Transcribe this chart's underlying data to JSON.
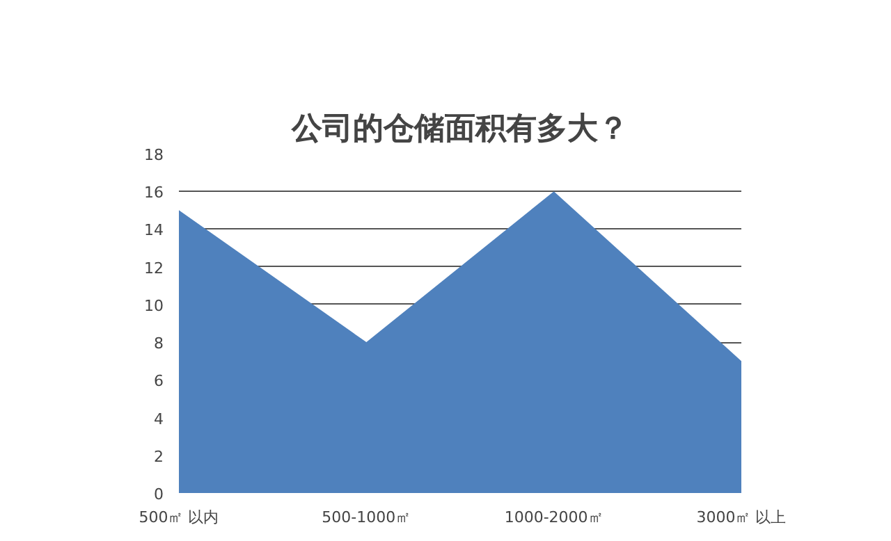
{
  "chart_data": {
    "type": "area",
    "title": "公司的仓储面积有多大？",
    "categories": [
      "500㎡ 以内",
      "500-1000㎡",
      "1000-2000㎡",
      "3000㎡ 以上"
    ],
    "values": [
      15,
      8,
      16,
      7
    ],
    "color": "#4f81bd",
    "ylim": [
      0,
      18
    ],
    "yticks": [
      0,
      2,
      4,
      6,
      8,
      10,
      12,
      14,
      16,
      18
    ],
    "grid": "y"
  }
}
